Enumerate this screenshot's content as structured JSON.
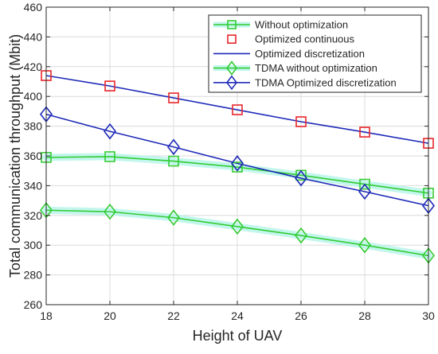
{
  "chart_data": {
    "type": "line",
    "xlabel": "Height of UAV",
    "ylabel": "Total communication throughput (Mbit)",
    "xlim": [
      18,
      30
    ],
    "ylim": [
      260,
      460
    ],
    "x_ticks": [
      "18",
      "20",
      "22",
      "24",
      "26",
      "28",
      "30"
    ],
    "y_ticks": [
      "260",
      "280",
      "300",
      "320",
      "340",
      "360",
      "380",
      "400",
      "420",
      "440",
      "460"
    ],
    "grid": true,
    "legend_position": "top-right",
    "x": [
      18,
      20,
      22,
      24,
      26,
      28,
      30
    ],
    "series": [
      {
        "name": "Without optimization",
        "values": [
          359,
          359.5,
          356.5,
          352.5,
          347,
          341,
          335
        ],
        "color": "#33cc33",
        "marker": "square",
        "line": true,
        "halo": true
      },
      {
        "name": "Optimized continuous",
        "values": [
          414,
          407,
          399,
          391,
          383,
          376,
          368.5
        ],
        "color": "#e8262b",
        "marker": "square",
        "line": false,
        "halo": false
      },
      {
        "name": "Optimized discretization",
        "values": [
          414,
          407,
          399,
          391,
          383,
          376,
          368.5
        ],
        "color": "#1f2ab8",
        "marker": "none",
        "line": true,
        "halo": false
      },
      {
        "name": "TDMA without optimization",
        "values": [
          323.5,
          322.5,
          318.5,
          312.5,
          306.5,
          300,
          293
        ],
        "color": "#33cc33",
        "marker": "diamond",
        "line": true,
        "halo": true
      },
      {
        "name": "TDMA Optimized discretization",
        "values": [
          388,
          376.5,
          366,
          355,
          345,
          336,
          326.5
        ],
        "color": "#1f2ab8",
        "marker": "diamond",
        "line": true,
        "halo": false
      }
    ]
  }
}
